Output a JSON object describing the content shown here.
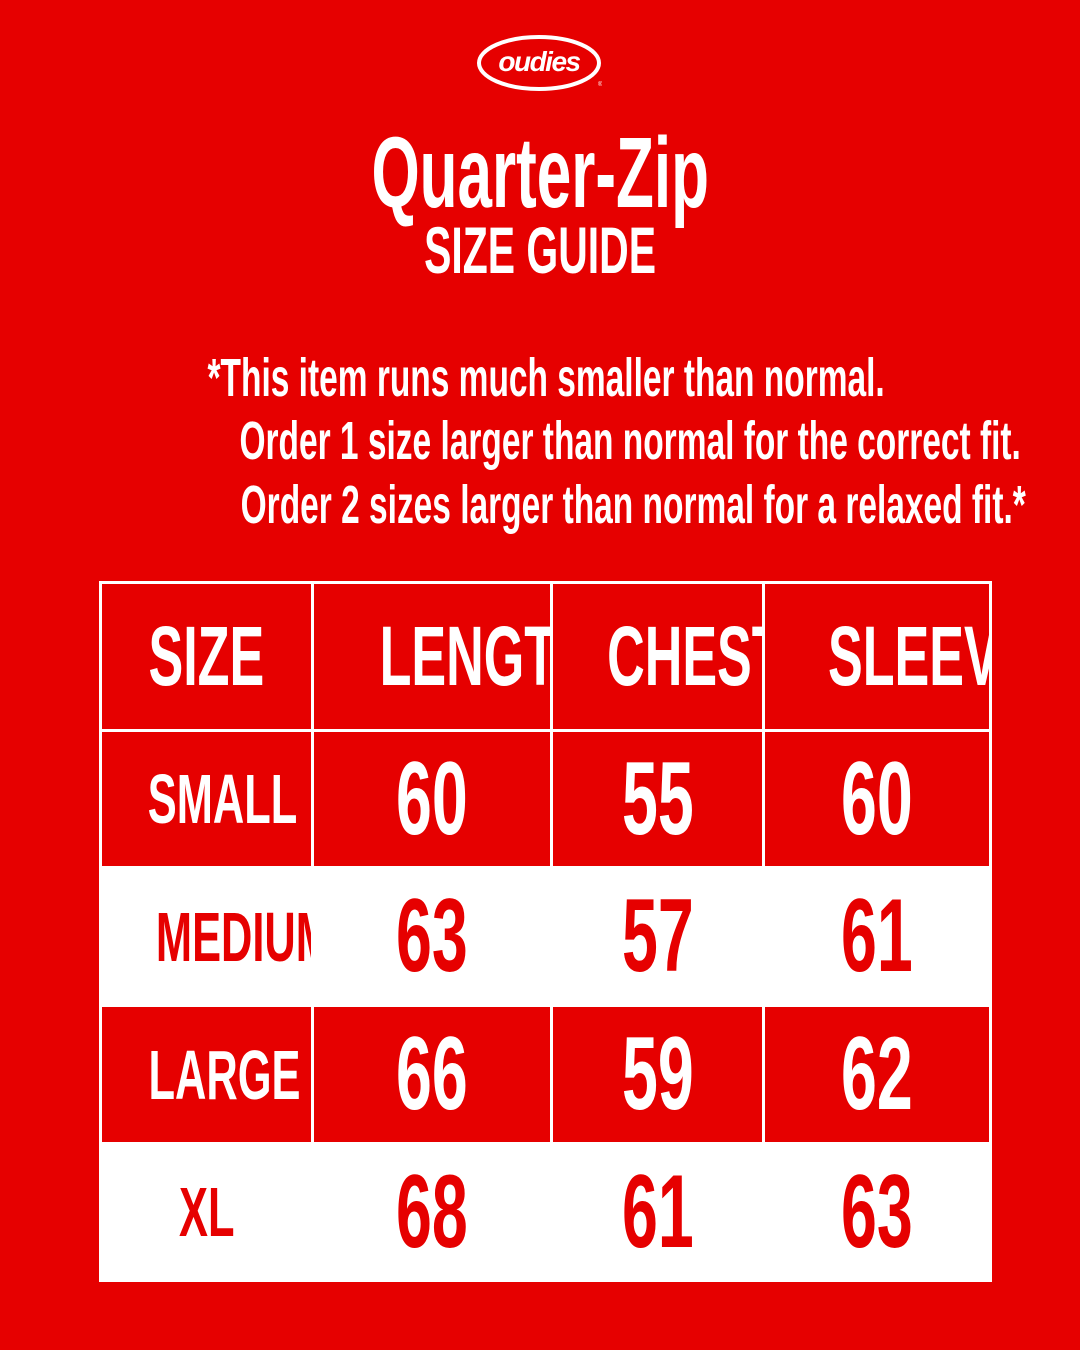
{
  "brand": {
    "logo_text": "oudies",
    "accent": "#e60000"
  },
  "title": "Quarter-Zip",
  "subtitle": "SIZE GUIDE",
  "notes": [
    "*This item runs much smaller than normal.",
    "Order 1 size larger than normal for the correct fit.",
    "Order 2 sizes larger than normal for a relaxed fit.*"
  ],
  "table": {
    "headers": [
      "SIZE",
      "LENGTH",
      "CHEST",
      "SLEEVE"
    ],
    "rows": [
      {
        "size": "SMALL",
        "length": "60",
        "chest": "55",
        "sleeve": "60"
      },
      {
        "size": "MEDIUM",
        "length": "63",
        "chest": "57",
        "sleeve": "61"
      },
      {
        "size": "LARGE",
        "length": "66",
        "chest": "59",
        "sleeve": "62"
      },
      {
        "size": "XL",
        "length": "68",
        "chest": "61",
        "sleeve": "63"
      }
    ]
  }
}
